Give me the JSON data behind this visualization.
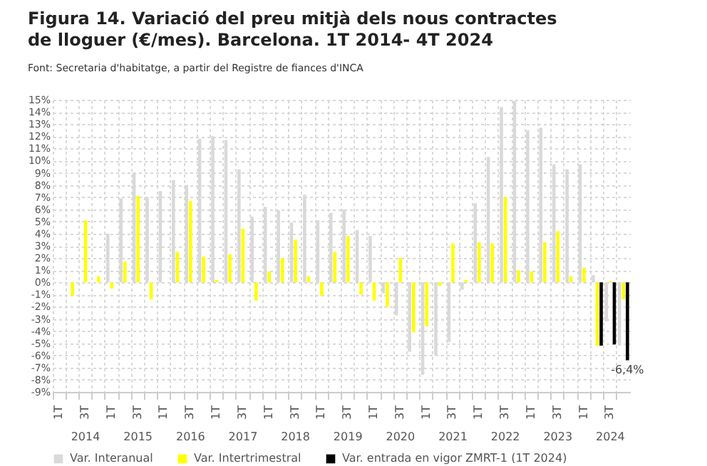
{
  "chart_data": {
    "type": "bar",
    "title": "Figura 14. Variació del preu mitjà dels nous contractes de lloguer (€/mes). Barcelona. 1T 2014- 4T 2024",
    "annotations": [
      "Font: Secretaria d'habitatge, a partir del Registre de fiances d'INCA",
      "2014",
      "2015",
      "2016",
      "2017",
      "2018",
      "2019",
      "2020",
      "2021",
      "2022",
      "2023",
      "2024"
    ],
    "categories": [
      "1T",
      null,
      "3T",
      null,
      "1T",
      null,
      "3T",
      null,
      "1T",
      null,
      "3T",
      null,
      "1T",
      null,
      "3T",
      null,
      "1T",
      null,
      "3T",
      null,
      "1T",
      null,
      "3T",
      null,
      "1T",
      null,
      "3T",
      null,
      "1T",
      null,
      "3T",
      null,
      "1T",
      null,
      "3T",
      null,
      "1T",
      null,
      "3T",
      null,
      "1T",
      null,
      "3T",
      null
    ],
    "series": [
      {
        "name": "Var. Interanual",
        "color": "#d9d9d9",
        "values": [
          null,
          null,
          null,
          null,
          4.0,
          6.9,
          9.0,
          7.0,
          7.5,
          8.4,
          8.0,
          11.8,
          12.0,
          11.7,
          9.3,
          5.4,
          6.2,
          5.9,
          4.9,
          7.2,
          5.1,
          5.7,
          6.0,
          4.3,
          3.8,
          -0.9,
          -2.7,
          -5.7,
          -7.6,
          -6.0,
          -4.9,
          -0.6,
          6.5,
          10.3,
          14.4,
          14.9,
          12.5,
          12.7,
          9.7,
          9.3,
          9.7,
          0.6,
          -3.2,
          -5.2
        ]
      },
      {
        "name": "Var. Intertrimestral",
        "color": "#ffff00",
        "values": [
          null,
          -1.1,
          5.1,
          0.5,
          -0.5,
          1.7,
          7.1,
          -1.4,
          null,
          2.5,
          6.7,
          2.1,
          0.2,
          2.3,
          4.4,
          -1.5,
          0.9,
          2.0,
          3.5,
          0.5,
          -1.1,
          2.5,
          3.8,
          -1.0,
          -1.5,
          -2.0,
          2.0,
          -4.1,
          -3.6,
          -0.3,
          3.2,
          0.2,
          3.3,
          3.2,
          7.0,
          1.0,
          0.9,
          3.3,
          4.2,
          0.5,
          1.2,
          -5.2,
          0.1,
          -1.4
        ]
      },
      {
        "name": "Var. entrada en vigor ZMRT-1 (1T 2024)",
        "color": "#000000",
        "values": [
          null,
          null,
          null,
          null,
          null,
          null,
          null,
          null,
          null,
          null,
          null,
          null,
          null,
          null,
          null,
          null,
          null,
          null,
          null,
          null,
          null,
          null,
          null,
          null,
          null,
          null,
          null,
          null,
          null,
          null,
          null,
          null,
          null,
          null,
          null,
          null,
          null,
          null,
          null,
          null,
          null,
          -5.2,
          -5.1,
          -6.4
        ],
        "value_labels": [
          null,
          null,
          null,
          null,
          null,
          null,
          null,
          null,
          null,
          null,
          null,
          null,
          null,
          null,
          null,
          null,
          null,
          null,
          null,
          null,
          null,
          null,
          null,
          null,
          null,
          null,
          null,
          null,
          null,
          null,
          null,
          null,
          null,
          null,
          null,
          null,
          null,
          null,
          null,
          null,
          null,
          null,
          null,
          "-6,4%"
        ]
      }
    ],
    "ylim": [
      -9,
      15
    ],
    "yticks": [
      {
        "value": -9,
        "label": "-9%"
      },
      {
        "value": -8,
        "label": "-8%"
      },
      {
        "value": -7,
        "label": "-7%"
      },
      {
        "value": -6,
        "label": "-6%"
      },
      {
        "value": -5,
        "label": "-5%"
      },
      {
        "value": -4,
        "label": "-4%"
      },
      {
        "value": -3,
        "label": "-3%"
      },
      {
        "value": -2,
        "label": "-2%"
      },
      {
        "value": -1,
        "label": "-1%"
      },
      {
        "value": 0,
        "label": "0%"
      },
      {
        "value": 1,
        "label": "1%"
      },
      {
        "value": 2,
        "label": "2%"
      },
      {
        "value": 3,
        "label": "3%"
      },
      {
        "value": 4,
        "label": "4%"
      },
      {
        "value": 5,
        "label": "5%"
      },
      {
        "value": 6,
        "label": "6%"
      },
      {
        "value": 7,
        "label": "7%"
      },
      {
        "value": 8,
        "label": "8%"
      },
      {
        "value": 9,
        "label": "9%"
      },
      {
        "value": 10,
        "label": "10%"
      },
      {
        "value": 11,
        "label": "11%"
      },
      {
        "value": 12,
        "label": "12%"
      },
      {
        "value": 13,
        "label": "13%"
      },
      {
        "value": 14,
        "label": "14%"
      },
      {
        "value": 15,
        "label": "15%"
      }
    ],
    "grid": true,
    "legend": "bottom"
  }
}
